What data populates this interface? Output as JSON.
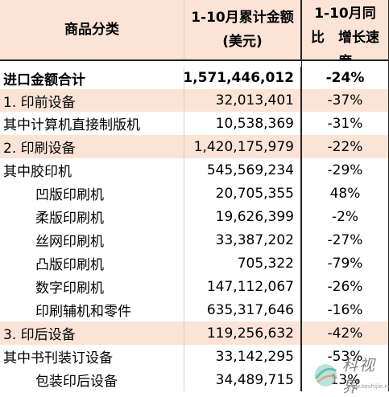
{
  "header": {
    "col1": "商品分类",
    "col2_line1": "1-10月累计金额",
    "col2_line2": "(美元)",
    "col3_line1": "1-10月同",
    "col3_line2": "比　增长速",
    "col3_line3": "度"
  },
  "rows": [
    {
      "name": "进口金额合计",
      "amount": "1,571,446,012",
      "change": "-24%"
    },
    {
      "name": "1. 印前设备",
      "amount": "32,013,401",
      "change": "-37%"
    },
    {
      "name": "其中计算机直接制版机",
      "amount": "10,538,369",
      "change": "-31%"
    },
    {
      "name": "2. 印刷设备",
      "amount": "1,420,175,979",
      "change": "-22%"
    },
    {
      "name": "其中胶印机",
      "amount": "545,569,234",
      "change": "-29%"
    },
    {
      "name": "凹版印刷机",
      "amount": "20,705,355",
      "change": "48%"
    },
    {
      "name": "柔版印刷机",
      "amount": "19,626,399",
      "change": "-2%"
    },
    {
      "name": "丝网印刷机",
      "amount": "33,387,202",
      "change": "-27%"
    },
    {
      "name": "凸版印刷机",
      "amount": "705,322",
      "change": "-79%"
    },
    {
      "name": "数字印刷机",
      "amount": "147,112,067",
      "change": "-26%"
    },
    {
      "name": "印刷辅机和零件",
      "amount": "635,317,646",
      "change": "-16%"
    },
    {
      "name": "3.  印后设备",
      "amount": "119,256,632",
      "change": "-42%"
    },
    {
      "name": "其中书刊装订设备",
      "amount": "33,142,295",
      "change": "-53%"
    },
    {
      "name": "包装印后设备",
      "amount": "34,489,715",
      "change": "13%"
    }
  ],
  "watermark": {
    "text": "科视界",
    "url": "www.keshijie.net"
  },
  "colors": {
    "highlight_row": "#fbe4d6",
    "border": "#222222"
  }
}
